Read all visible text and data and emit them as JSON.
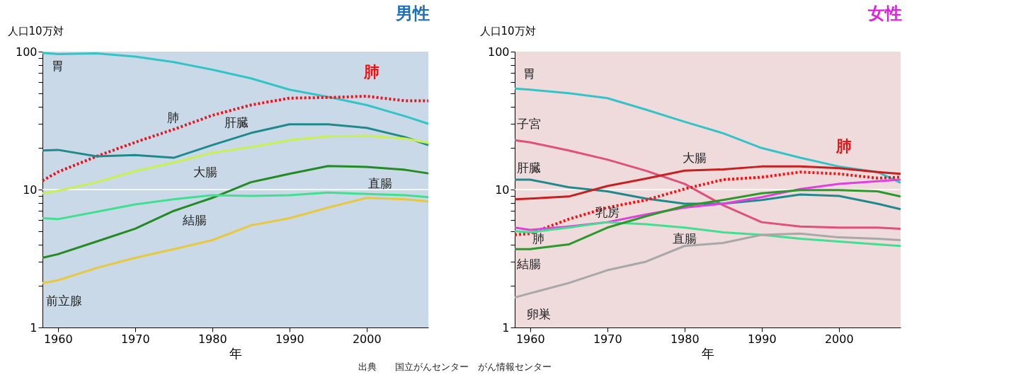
{
  "chart_data": [
    {
      "type": "line",
      "title": "男性",
      "ylabel": "人口10万対",
      "xlabel": "年",
      "log": "y",
      "grid": false,
      "legend": false,
      "x": [
        1958,
        1960,
        1965,
        1970,
        1975,
        1980,
        1985,
        1990,
        1995,
        2000,
        2005,
        2008
      ],
      "xlim": [
        1958,
        2008
      ],
      "xticks": [
        1960,
        1970,
        1980,
        1990,
        2000
      ],
      "ylim": [
        1,
        100
      ],
      "yticks": [
        1,
        {
          "value": 2,
          "label": null
        },
        {
          "value": 3,
          "label": null
        },
        {
          "value": 4,
          "label": null
        },
        {
          "value": 5,
          "label": null
        },
        {
          "value": 6,
          "label": null
        },
        {
          "value": 7,
          "label": null
        },
        {
          "value": 8,
          "label": null
        },
        {
          "value": 9,
          "label": null
        },
        10,
        {
          "value": 20,
          "label": null
        },
        {
          "value": 30,
          "label": null
        },
        {
          "value": 40,
          "label": null
        },
        {
          "value": 50,
          "label": null
        },
        {
          "value": 60,
          "label": null
        },
        {
          "value": 70,
          "label": null
        },
        {
          "value": 80,
          "label": null
        },
        {
          "value": 90,
          "label": null
        },
        100
      ],
      "ref_lines": [
        {
          "axis": "y",
          "value": 10,
          "color": "#ffffff"
        }
      ],
      "series": [
        {
          "name": "胃",
          "color": "#33c4c8",
          "values": [
            98,
            96,
            97,
            92,
            84,
            74,
            64,
            53,
            47,
            41,
            34,
            30
          ]
        },
        {
          "name": "肺",
          "color": "#e8141e",
          "line_style": "dotted",
          "values": [
            11.6,
            13.4,
            17.4,
            22,
            27.3,
            34.5,
            41,
            46,
            46.5,
            47.5,
            44,
            44
          ]
        },
        {
          "name": "肝臓",
          "color": "#1f8a8c",
          "values": [
            19.2,
            19.4,
            17.4,
            17.8,
            17,
            21,
            25.7,
            29.7,
            29.7,
            28,
            24,
            21
          ]
        },
        {
          "name": "大腸",
          "color": "#c8f050",
          "values": [
            9.4,
            9.8,
            11.3,
            13.6,
            15.7,
            18.5,
            20.3,
            22.8,
            24.3,
            24.5,
            23.4,
            21.8
          ]
        },
        {
          "name": "結腸",
          "color": "#228b22",
          "values": [
            3.2,
            3.4,
            4.2,
            5.2,
            7,
            8.7,
            11.3,
            13,
            14.8,
            14.6,
            13.9,
            13.1
          ]
        },
        {
          "name": "直腸",
          "color": "#40e090",
          "values": [
            6.2,
            6.1,
            6.9,
            7.8,
            8.5,
            9.1,
            9,
            9.1,
            9.5,
            9.3,
            9.1,
            8.8
          ]
        },
        {
          "name": "前立腺",
          "color": "#e8c83c",
          "values": [
            2.1,
            2.2,
            2.7,
            3.2,
            3.7,
            4.3,
            5.5,
            6.2,
            7.4,
            8.7,
            8.5,
            8.2
          ]
        }
      ],
      "annotations": [
        {
          "text": "肺",
          "x": 1995,
          "y": 46.5
        },
        "出典　　国立がんセンター　がん情報センター"
      ]
    },
    {
      "type": "line",
      "title": "女性",
      "ylabel": "人口10万対",
      "xlabel": "年",
      "log": "y",
      "grid": false,
      "legend": false,
      "x": [
        1958,
        1960,
        1965,
        1970,
        1975,
        1980,
        1985,
        1990,
        1995,
        2000,
        2005,
        2008
      ],
      "xlim": [
        1958,
        2008
      ],
      "xticks": [
        1960,
        1970,
        1980,
        1990,
        2000
      ],
      "ylim": [
        1,
        100
      ],
      "yticks": [
        1,
        {
          "value": 2,
          "label": null
        },
        {
          "value": 3,
          "label": null
        },
        {
          "value": 4,
          "label": null
        },
        {
          "value": 5,
          "label": null
        },
        {
          "value": 6,
          "label": null
        },
        {
          "value": 7,
          "label": null
        },
        {
          "value": 8,
          "label": null
        },
        {
          "value": 9,
          "label": null
        },
        10,
        {
          "value": 20,
          "label": null
        },
        {
          "value": 30,
          "label": null
        },
        {
          "value": 40,
          "label": null
        },
        {
          "value": 50,
          "label": null
        },
        {
          "value": 60,
          "label": null
        },
        {
          "value": 70,
          "label": null
        },
        {
          "value": 80,
          "label": null
        },
        {
          "value": 90,
          "label": null
        },
        100
      ],
      "ref_lines": [
        {
          "axis": "y",
          "value": 10,
          "color": "#ffffff"
        }
      ],
      "series": [
        {
          "name": "胃",
          "color": "#33c4c8",
          "values": [
            54,
            53,
            50,
            46,
            38,
            31,
            25.6,
            20,
            17,
            14.7,
            13.4,
            11.2
          ]
        },
        {
          "name": "子宮",
          "color": "#e0507a",
          "values": [
            22.8,
            22,
            19.2,
            16.5,
            13.7,
            11,
            7.7,
            5.8,
            5.4,
            5.3,
            5.3,
            5.2
          ]
        },
        {
          "name": "肝臓",
          "color": "#1f8a8c",
          "values": [
            11.8,
            11.8,
            10.4,
            9.7,
            8.6,
            7.9,
            7.9,
            8.4,
            9.2,
            9,
            7.9,
            7.2
          ]
        },
        {
          "name": "大腸",
          "color": "#c82020",
          "values": [
            8.5,
            8.6,
            8.9,
            10.6,
            12,
            13.7,
            14,
            14.7,
            14.7,
            14.3,
            13.4,
            13
          ]
        },
        {
          "name": "肺",
          "color": "#ff1010",
          "line_style": "dotted",
          "values": [
            4.7,
            4.8,
            6.1,
            7.4,
            8.4,
            10.1,
            11.8,
            12.3,
            13.4,
            13,
            12.1,
            12.3
          ]
        },
        {
          "name": "乳房",
          "color": "#e040e0",
          "values": [
            5.3,
            5.1,
            5.4,
            5.8,
            6.6,
            7.4,
            7.9,
            8.8,
            10.1,
            11,
            11.5,
            11.8
          ]
        },
        {
          "name": "直腸",
          "color": "#40e090",
          "values": [
            5,
            4.9,
            5.3,
            5.8,
            5.6,
            5.3,
            4.9,
            4.7,
            4.4,
            4.2,
            4,
            3.9
          ]
        },
        {
          "name": "結腸",
          "color": "#2a9a2a",
          "values": [
            3.7,
            3.7,
            4,
            5.3,
            6.4,
            7.6,
            8.4,
            9.4,
            9.9,
            9.9,
            9.7,
            8.9
          ]
        },
        {
          "name": "卵巣",
          "color": "#a8a8a8",
          "values": [
            1.65,
            1.77,
            2.1,
            2.6,
            3,
            3.9,
            4.1,
            4.7,
            4.8,
            4.5,
            4.4,
            4.3
          ]
        }
      ],
      "annotations": [
        {
          "text": "肺",
          "x": 1995,
          "y": 13.4
        }
      ]
    }
  ]
}
